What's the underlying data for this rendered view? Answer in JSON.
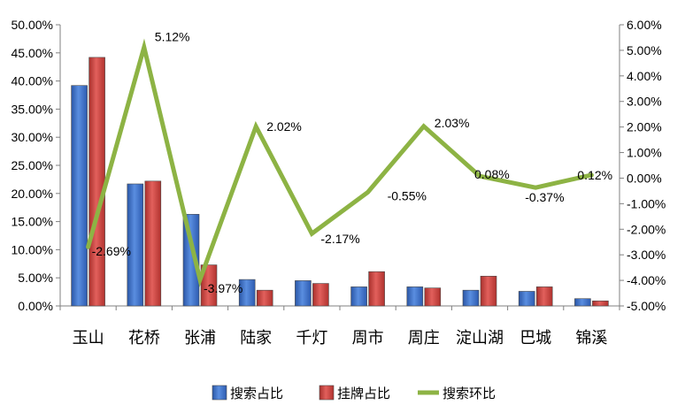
{
  "chart_data": {
    "type": "bar",
    "categories": [
      "玉山",
      "花桥",
      "张浦",
      "陆家",
      "千灯",
      "周市",
      "周庄",
      "淀山湖",
      "巴城",
      "锦溪"
    ],
    "series": [
      {
        "name": "搜索占比",
        "type": "bar",
        "axis": "left",
        "color": "#3f6fc4",
        "values": [
          39.2,
          21.7,
          16.3,
          4.7,
          4.5,
          3.4,
          3.4,
          2.8,
          2.6,
          1.3
        ]
      },
      {
        "name": "挂牌占比",
        "type": "bar",
        "axis": "left",
        "color": "#c9403d",
        "values": [
          44.2,
          22.2,
          7.3,
          2.8,
          4.0,
          6.1,
          3.2,
          5.3,
          3.4,
          0.9
        ]
      },
      {
        "name": "搜索环比",
        "type": "line",
        "axis": "right",
        "color": "#8db344",
        "values": [
          -2.69,
          5.12,
          -3.97,
          2.02,
          -2.17,
          -0.55,
          2.03,
          0.08,
          -0.37,
          0.12
        ],
        "data_labels": [
          "-2.69%",
          "5.12%",
          "-3.97%",
          "2.02%",
          "-2.17%",
          "-0.55%",
          "2.03%",
          "0.08%",
          "-0.37%",
          "0.12%"
        ]
      }
    ],
    "y_left": {
      "ylim": [
        0,
        50
      ],
      "ticks": [
        0,
        5,
        10,
        15,
        20,
        25,
        30,
        35,
        40,
        45,
        50
      ],
      "tick_labels": [
        "0.00%",
        "5.00%",
        "10.00%",
        "15.00%",
        "20.00%",
        "25.00%",
        "30.00%",
        "35.00%",
        "40.00%",
        "45.00%",
        "50.00%"
      ]
    },
    "y_right": {
      "ylim": [
        -5,
        6
      ],
      "ticks": [
        -5,
        -4,
        -3,
        -2,
        -1,
        0,
        1,
        2,
        3,
        4,
        5,
        6
      ],
      "tick_labels": [
        "-5.00%",
        "-4.00%",
        "-3.00%",
        "-2.00%",
        "-1.00%",
        "0.00%",
        "1.00%",
        "2.00%",
        "3.00%",
        "4.00%",
        "5.00%",
        "6.00%"
      ]
    },
    "legend": "bottom",
    "grid": false,
    "title": "",
    "xlabel": "",
    "ylabel": ""
  }
}
